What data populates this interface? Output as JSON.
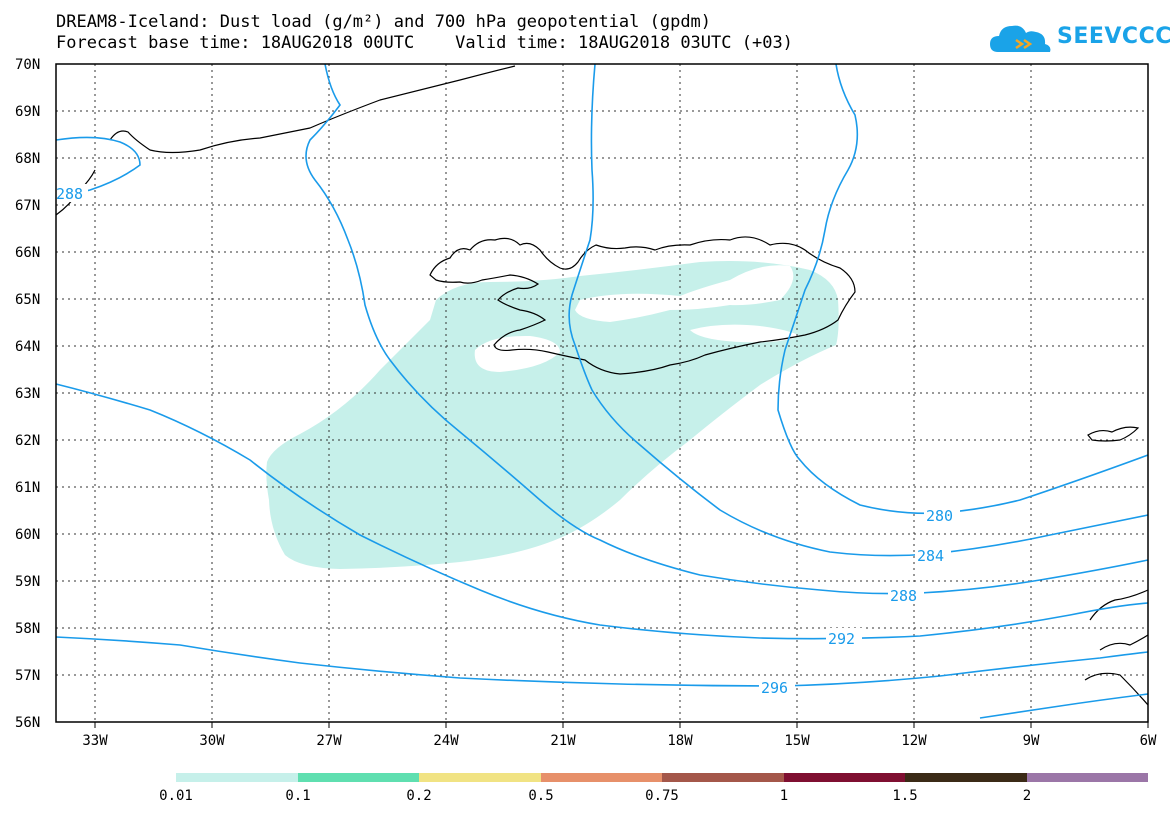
{
  "title": {
    "line1": "DREAM8-Iceland: Dust load (g/m²) and 700 hPa geopotential (gpdm)",
    "line2": "Forecast base time: 18AUG2018 00UTC    Valid time: 18AUG2018 03UTC (+03)"
  },
  "logo": {
    "text": "SEEVCCC",
    "icon": "cloud-icon"
  },
  "map": {
    "lat_range": [
      56,
      70
    ],
    "lon_range": [
      -34,
      -6
    ],
    "lat_labels": [
      "56N",
      "57N",
      "58N",
      "59N",
      "60N",
      "61N",
      "62N",
      "63N",
      "64N",
      "65N",
      "66N",
      "67N",
      "68N",
      "69N",
      "70N"
    ],
    "lon_labels": [
      "33W",
      "30W",
      "27W",
      "24W",
      "21W",
      "18W",
      "15W",
      "12W",
      "9W",
      "6W"
    ],
    "contour_color": "#1a9bea",
    "dust_fill_color": "#c6f0ea",
    "contours": [
      {
        "label": "280"
      },
      {
        "label": "284"
      },
      {
        "label": "288"
      },
      {
        "label": "292"
      },
      {
        "label": "296"
      },
      {
        "label": "288"
      }
    ]
  },
  "colorbar": {
    "thresholds": [
      "0.01",
      "0.1",
      "0.2",
      "0.5",
      "0.75",
      "1",
      "1.5",
      "2"
    ],
    "colors": [
      "#c6f0ea",
      "#5fdfb0",
      "#f1e383",
      "#e7906a",
      "#a4574a",
      "#7f0f31",
      "#3b2a16",
      "#9b76a7"
    ]
  }
}
